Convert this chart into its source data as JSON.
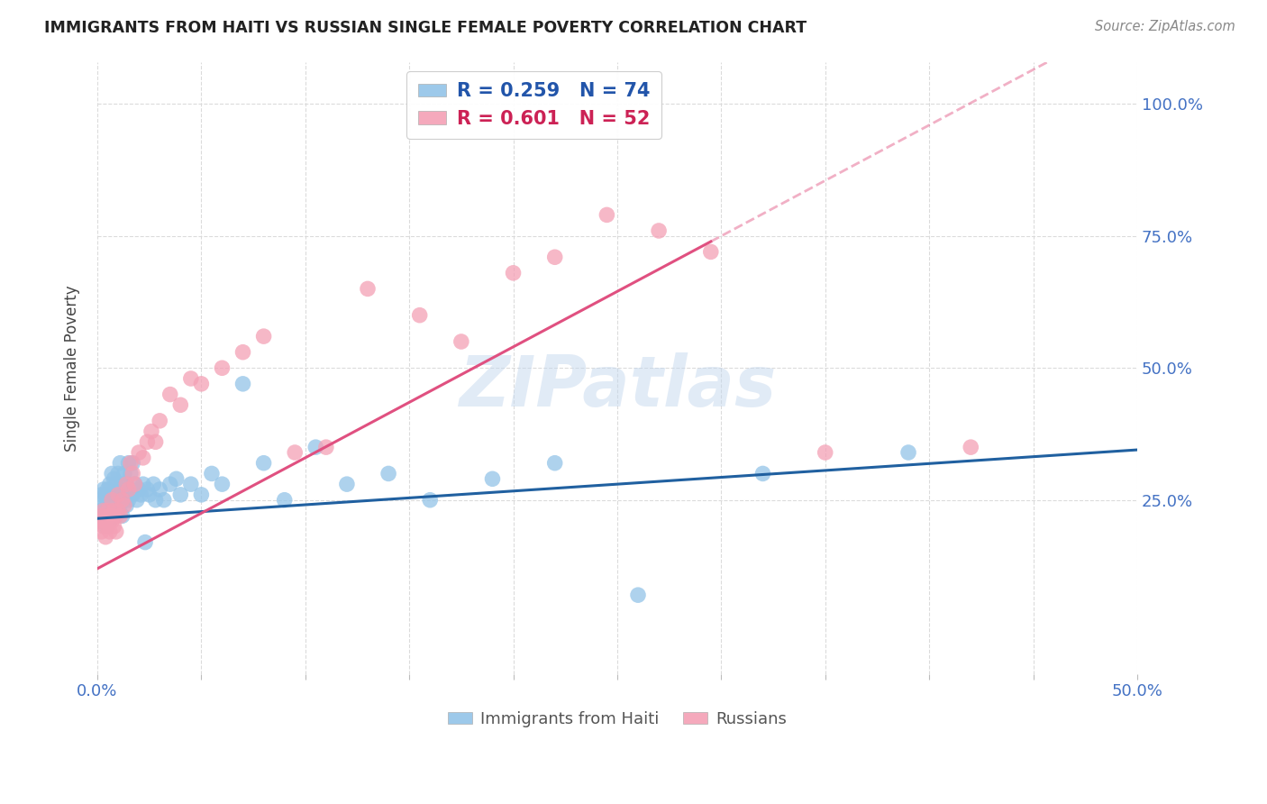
{
  "title": "IMMIGRANTS FROM HAITI VS RUSSIAN SINGLE FEMALE POVERTY CORRELATION CHART",
  "source": "Source: ZipAtlas.com",
  "ylabel": "Single Female Poverty",
  "ytick_labels": [
    "25.0%",
    "50.0%",
    "75.0%",
    "100.0%"
  ],
  "ytick_values": [
    0.25,
    0.5,
    0.75,
    1.0
  ],
  "watermark": "ZIPatlas",
  "xlim": [
    0.0,
    0.5
  ],
  "ylim": [
    -0.08,
    1.08
  ],
  "haiti_color": "#93c4e8",
  "russia_color": "#f4a0b5",
  "haiti_trend_color": "#2060a0",
  "russia_trend_color": "#e05080",
  "haiti_R": 0.259,
  "haiti_N": 74,
  "russia_R": 0.601,
  "russia_N": 52,
  "haiti_trend_intercept": 0.215,
  "haiti_trend_slope": 0.26,
  "russia_trend_intercept": 0.12,
  "russia_trend_slope": 2.1,
  "russia_trend_xmax": 0.295,
  "haiti_scatter_x": [
    0.001,
    0.002,
    0.002,
    0.003,
    0.003,
    0.003,
    0.004,
    0.004,
    0.004,
    0.005,
    0.005,
    0.005,
    0.006,
    0.006,
    0.006,
    0.006,
    0.007,
    0.007,
    0.007,
    0.008,
    0.008,
    0.008,
    0.009,
    0.009,
    0.009,
    0.01,
    0.01,
    0.01,
    0.011,
    0.011,
    0.011,
    0.012,
    0.012,
    0.013,
    0.013,
    0.014,
    0.014,
    0.015,
    0.015,
    0.016,
    0.016,
    0.017,
    0.017,
    0.018,
    0.019,
    0.02,
    0.021,
    0.022,
    0.023,
    0.024,
    0.025,
    0.027,
    0.028,
    0.03,
    0.032,
    0.035,
    0.038,
    0.04,
    0.045,
    0.05,
    0.055,
    0.06,
    0.07,
    0.08,
    0.09,
    0.105,
    0.12,
    0.14,
    0.16,
    0.19,
    0.22,
    0.26,
    0.32,
    0.39
  ],
  "haiti_scatter_y": [
    0.21,
    0.23,
    0.26,
    0.22,
    0.25,
    0.27,
    0.2,
    0.24,
    0.26,
    0.22,
    0.25,
    0.27,
    0.21,
    0.24,
    0.26,
    0.28,
    0.22,
    0.25,
    0.3,
    0.23,
    0.26,
    0.29,
    0.22,
    0.25,
    0.28,
    0.23,
    0.26,
    0.3,
    0.24,
    0.27,
    0.32,
    0.22,
    0.28,
    0.25,
    0.3,
    0.24,
    0.28,
    0.25,
    0.32,
    0.26,
    0.3,
    0.26,
    0.32,
    0.28,
    0.25,
    0.27,
    0.26,
    0.28,
    0.17,
    0.27,
    0.26,
    0.28,
    0.25,
    0.27,
    0.25,
    0.28,
    0.29,
    0.26,
    0.28,
    0.26,
    0.3,
    0.28,
    0.47,
    0.32,
    0.25,
    0.35,
    0.28,
    0.3,
    0.25,
    0.29,
    0.32,
    0.07,
    0.3,
    0.34
  ],
  "russia_scatter_x": [
    0.001,
    0.002,
    0.002,
    0.003,
    0.003,
    0.004,
    0.004,
    0.005,
    0.005,
    0.006,
    0.006,
    0.007,
    0.007,
    0.008,
    0.008,
    0.009,
    0.009,
    0.01,
    0.01,
    0.011,
    0.012,
    0.013,
    0.014,
    0.015,
    0.016,
    0.017,
    0.018,
    0.02,
    0.022,
    0.024,
    0.026,
    0.028,
    0.03,
    0.035,
    0.04,
    0.045,
    0.05,
    0.06,
    0.07,
    0.08,
    0.095,
    0.11,
    0.13,
    0.155,
    0.175,
    0.2,
    0.22,
    0.245,
    0.27,
    0.295,
    0.35,
    0.42
  ],
  "russia_scatter_y": [
    0.21,
    0.19,
    0.22,
    0.2,
    0.23,
    0.18,
    0.21,
    0.2,
    0.23,
    0.19,
    0.22,
    0.21,
    0.25,
    0.2,
    0.23,
    0.19,
    0.22,
    0.23,
    0.26,
    0.22,
    0.25,
    0.24,
    0.28,
    0.27,
    0.32,
    0.3,
    0.28,
    0.34,
    0.33,
    0.36,
    0.38,
    0.36,
    0.4,
    0.45,
    0.43,
    0.48,
    0.47,
    0.5,
    0.53,
    0.56,
    0.34,
    0.35,
    0.65,
    0.6,
    0.55,
    0.68,
    0.71,
    0.79,
    0.76,
    0.72,
    0.34,
    0.35
  ]
}
